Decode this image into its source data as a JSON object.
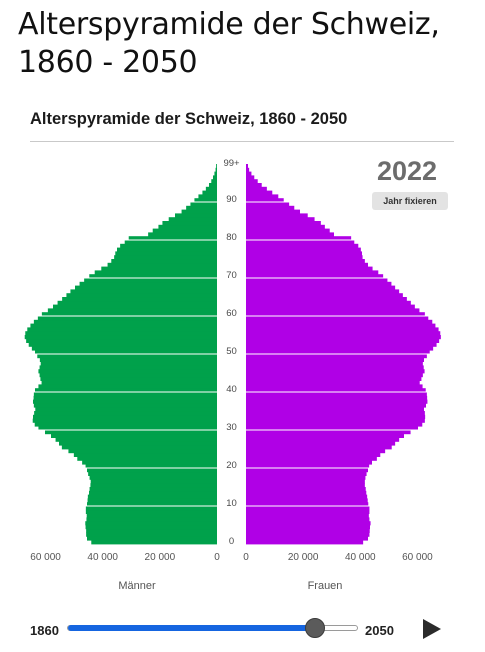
{
  "page": {
    "title": "Alterspyramide der Schweiz, 1860 - 2050"
  },
  "chart_data": {
    "type": "bar",
    "orientation": "horizontal-pyramid",
    "title": "Alterspyramide der Schweiz, 1860 - 2050",
    "year": "2022",
    "age_labels": [
      "0",
      "10",
      "20",
      "30",
      "40",
      "50",
      "60",
      "70",
      "80",
      "90",
      "99+"
    ],
    "male_axis_ticks": [
      "60 000",
      "40 000",
      "20 000",
      "0"
    ],
    "female_axis_ticks": [
      "0",
      "20 000",
      "40 000",
      "60 000"
    ],
    "xlim": [
      0,
      70000
    ],
    "xlabel_left": "Männer",
    "xlabel_right": "Frauen",
    "colors": {
      "male": "#00a14b",
      "female": "#b000e6"
    },
    "series": [
      {
        "name": "Männer",
        "values": [
          44000,
          45500,
          45800,
          45800,
          46000,
          46100,
          45700,
          45600,
          45900,
          45900,
          45500,
          45300,
          45200,
          44800,
          44600,
          44300,
          44200,
          44600,
          45100,
          45500,
          46000,
          47200,
          48900,
          50100,
          52000,
          54300,
          55300,
          56500,
          58100,
          60200,
          62500,
          63800,
          64500,
          64400,
          64000,
          63600,
          64100,
          64400,
          64200,
          64100,
          63700,
          62500,
          61400,
          61800,
          62100,
          62500,
          62100,
          61700,
          62000,
          62900,
          63700,
          64800,
          65900,
          66800,
          67300,
          67100,
          66400,
          65300,
          64100,
          62700,
          61300,
          59200,
          57400,
          55800,
          54200,
          52700,
          51300,
          49700,
          48100,
          46500,
          44700,
          42800,
          40500,
          38300,
          37000,
          36000,
          35600,
          35000,
          33900,
          32300,
          30900,
          24100,
          22500,
          20500,
          19100,
          16900,
          14700,
          12400,
          10800,
          9300,
          7900,
          6500,
          5100,
          3900,
          2800,
          2000,
          1400,
          900,
          500,
          300
        ]
      },
      {
        "name": "Frauen",
        "values": [
          41000,
          42700,
          43200,
          43300,
          43400,
          43600,
          43200,
          43000,
          43200,
          43200,
          42800,
          42600,
          42400,
          42100,
          41900,
          41600,
          41600,
          41800,
          42200,
          42700,
          43100,
          44100,
          45800,
          47000,
          48700,
          51000,
          52200,
          53600,
          55300,
          57600,
          60200,
          61700,
          62600,
          62700,
          62600,
          62300,
          63000,
          63500,
          63400,
          63300,
          62900,
          61800,
          60800,
          61400,
          61900,
          62500,
          62200,
          61900,
          62300,
          63300,
          64300,
          65500,
          66700,
          67600,
          68200,
          68000,
          67400,
          66300,
          65200,
          63800,
          62600,
          60700,
          59100,
          57700,
          56300,
          54900,
          53600,
          52200,
          50900,
          49500,
          48000,
          46300,
          44300,
          42700,
          41600,
          40800,
          40600,
          40200,
          39300,
          37900,
          36800,
          30800,
          29300,
          27600,
          26200,
          24000,
          21600,
          18900,
          16900,
          15100,
          13200,
          11300,
          9200,
          7300,
          5500,
          4100,
          2900,
          1900,
          1100,
          700
        ]
      }
    ]
  },
  "controls": {
    "fix_year_label": "Jahr fixieren",
    "slider": {
      "min": 1860,
      "max": 2050,
      "value": 2022,
      "min_label": "1860",
      "max_label": "2050"
    }
  },
  "icons": {
    "play": "play-icon"
  }
}
